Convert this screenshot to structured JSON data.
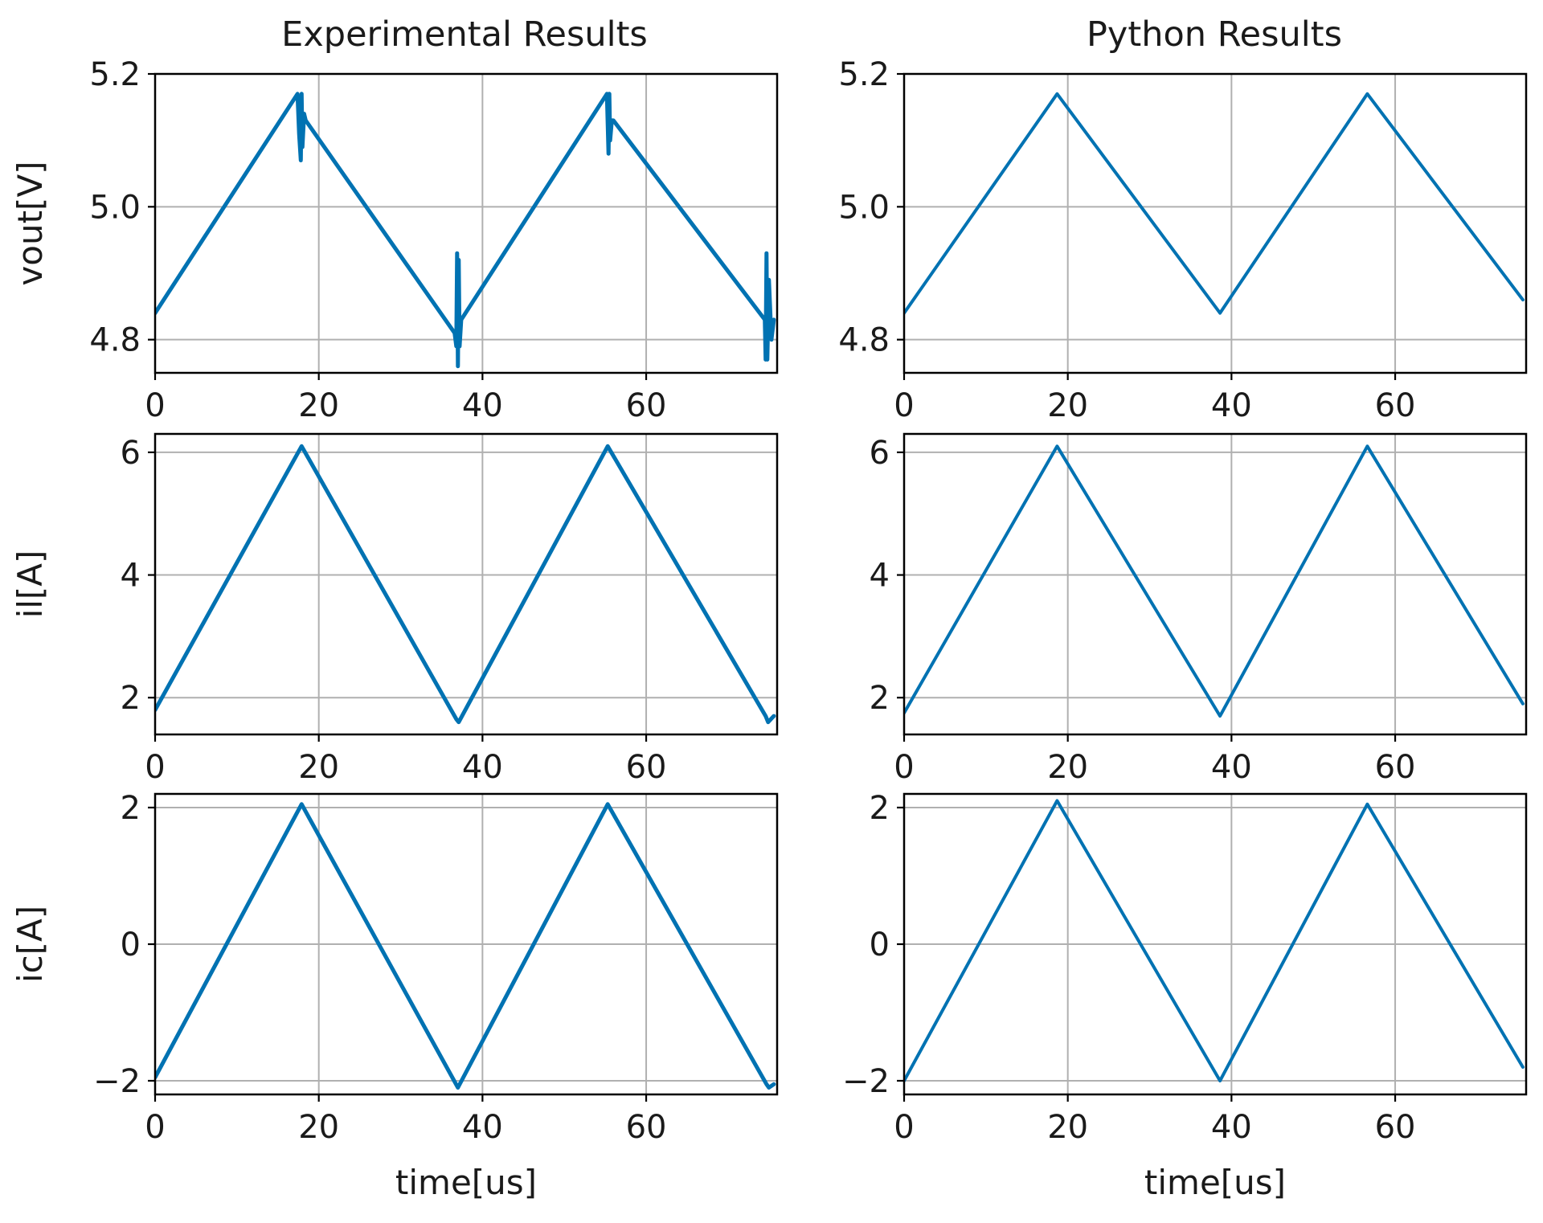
{
  "figure": {
    "column_titles": [
      "Experimental Results",
      "Python Results"
    ],
    "line_color": "#0072b2"
  },
  "chart_data": [
    {
      "type": "line",
      "id": "exp-vout",
      "title": "Experimental Results",
      "xlabel": "",
      "ylabel": "vout[V]",
      "xlim": [
        0,
        76
      ],
      "ylim": [
        4.75,
        5.2
      ],
      "xticks": [
        0,
        20,
        40,
        60
      ],
      "yticks": [
        4.8,
        5.0,
        5.2
      ],
      "ytick_labels": [
        "4.8",
        "5.0",
        "5.2"
      ],
      "grid": true,
      "series": [
        {
          "name": "vout",
          "x": [
            0,
            17.4,
            17.6,
            17.8,
            17.9,
            18.0,
            18.2,
            18.4,
            36.6,
            36.8,
            36.9,
            37.0,
            37.1,
            37.2,
            37.4,
            55.2,
            55.4,
            55.5,
            55.6,
            55.8,
            56.0,
            74.5,
            74.6,
            74.7,
            74.8,
            75.0,
            75.3,
            75.6
          ],
          "y": [
            4.84,
            5.17,
            5.11,
            5.07,
            5.17,
            5.09,
            5.14,
            5.13,
            4.81,
            4.79,
            4.93,
            4.76,
            4.92,
            4.79,
            4.83,
            5.17,
            5.08,
            5.17,
            5.1,
            5.13,
            5.13,
            4.83,
            4.77,
            4.93,
            4.77,
            4.89,
            4.8,
            4.83
          ]
        }
      ]
    },
    {
      "type": "line",
      "id": "py-vout",
      "title": "Python Results",
      "xlabel": "",
      "ylabel": "",
      "xlim": [
        0,
        76
      ],
      "ylim": [
        4.75,
        5.2
      ],
      "xticks": [
        0,
        20,
        40,
        60
      ],
      "yticks": [
        4.8,
        5.0,
        5.2
      ],
      "ytick_labels": [
        "4.8",
        "5.0",
        "5.2"
      ],
      "grid": true,
      "series": [
        {
          "name": "vout",
          "x": [
            0,
            18.7,
            38.6,
            56.6,
            75.6
          ],
          "y": [
            4.84,
            5.17,
            4.84,
            5.17,
            4.86
          ]
        }
      ]
    },
    {
      "type": "line",
      "id": "exp-il",
      "xlabel": "",
      "ylabel": "il[A]",
      "xlim": [
        0,
        76
      ],
      "ylim": [
        1.4,
        6.3
      ],
      "xticks": [
        0,
        20,
        40,
        60
      ],
      "yticks": [
        2,
        4,
        6
      ],
      "ytick_labels": [
        "2",
        "4",
        "6"
      ],
      "grid": true,
      "series": [
        {
          "name": "il",
          "x": [
            0,
            17.9,
            36.8,
            37.1,
            55.3,
            74.6,
            74.9,
            75.6
          ],
          "y": [
            1.8,
            6.1,
            1.65,
            1.6,
            6.1,
            1.7,
            1.6,
            1.7
          ]
        }
      ]
    },
    {
      "type": "line",
      "id": "py-il",
      "xlabel": "",
      "ylabel": "",
      "xlim": [
        0,
        76
      ],
      "ylim": [
        1.4,
        6.3
      ],
      "xticks": [
        0,
        20,
        40,
        60
      ],
      "yticks": [
        2,
        4,
        6
      ],
      "ytick_labels": [
        "2",
        "4",
        "6"
      ],
      "grid": true,
      "series": [
        {
          "name": "il",
          "x": [
            0,
            18.7,
            38.6,
            56.6,
            75.6
          ],
          "y": [
            1.75,
            6.1,
            1.7,
            6.1,
            1.9
          ]
        }
      ]
    },
    {
      "type": "line",
      "id": "exp-ic",
      "xlabel": "time[us]",
      "ylabel": "ic[A]",
      "xlim": [
        0,
        76
      ],
      "ylim": [
        -2.2,
        2.2
      ],
      "xticks": [
        0,
        20,
        40,
        60
      ],
      "yticks": [
        -2,
        0,
        2
      ],
      "ytick_labels": [
        "−2",
        "0",
        "2"
      ],
      "grid": true,
      "series": [
        {
          "name": "ic",
          "x": [
            0,
            17.9,
            37.0,
            55.3,
            74.7,
            75.0,
            75.6
          ],
          "y": [
            -1.95,
            2.05,
            -2.1,
            2.05,
            -2.05,
            -2.1,
            -2.05
          ]
        }
      ]
    },
    {
      "type": "line",
      "id": "py-ic",
      "xlabel": "time[us]",
      "ylabel": "",
      "xlim": [
        0,
        76
      ],
      "ylim": [
        -2.2,
        2.2
      ],
      "xticks": [
        0,
        20,
        40,
        60
      ],
      "yticks": [
        -2,
        0,
        2
      ],
      "ytick_labels": [
        "−2",
        "0",
        "2"
      ],
      "grid": true,
      "series": [
        {
          "name": "ic",
          "x": [
            0,
            18.7,
            38.6,
            56.6,
            75.6
          ],
          "y": [
            -2.0,
            2.1,
            -2.0,
            2.05,
            -1.8
          ]
        }
      ]
    }
  ]
}
